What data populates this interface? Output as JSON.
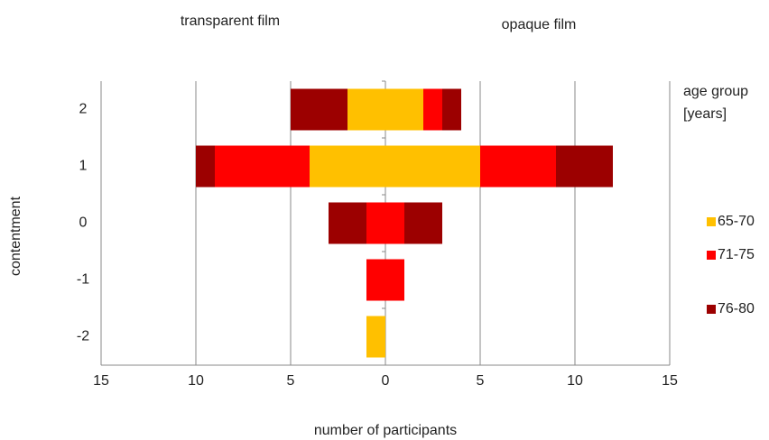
{
  "chart_data": {
    "type": "diverging-bar",
    "side_titles": {
      "transparent": "transparent film",
      "opaque": "opaque film"
    },
    "x_label": "number of participants",
    "y_label": "contentment",
    "categories": [
      "2",
      "1",
      "0",
      "-1",
      "-2"
    ],
    "legend_title": [
      "age group",
      "[years]"
    ],
    "series": [
      {
        "name": "65-70",
        "color": "#ffc000",
        "transparent": [
          2,
          4,
          0,
          0,
          1
        ],
        "opaque": [
          2,
          5,
          0,
          0,
          0
        ]
      },
      {
        "name": "71-75",
        "color": "#ff0000",
        "transparent": [
          0,
          5,
          1,
          1,
          0
        ],
        "opaque": [
          1,
          4,
          1,
          1,
          0
        ]
      },
      {
        "name": "76-80",
        "color": "#9c0000",
        "transparent": [
          3,
          1,
          2,
          0,
          0
        ],
        "opaque": [
          1,
          3,
          2,
          0,
          0
        ]
      }
    ],
    "xlim": [
      -15,
      15
    ],
    "xticks": [
      {
        "value": -15,
        "label": "15"
      },
      {
        "value": -10,
        "label": "10"
      },
      {
        "value": -5,
        "label": "5"
      },
      0,
      5,
      10,
      15
    ],
    "grid": true
  }
}
